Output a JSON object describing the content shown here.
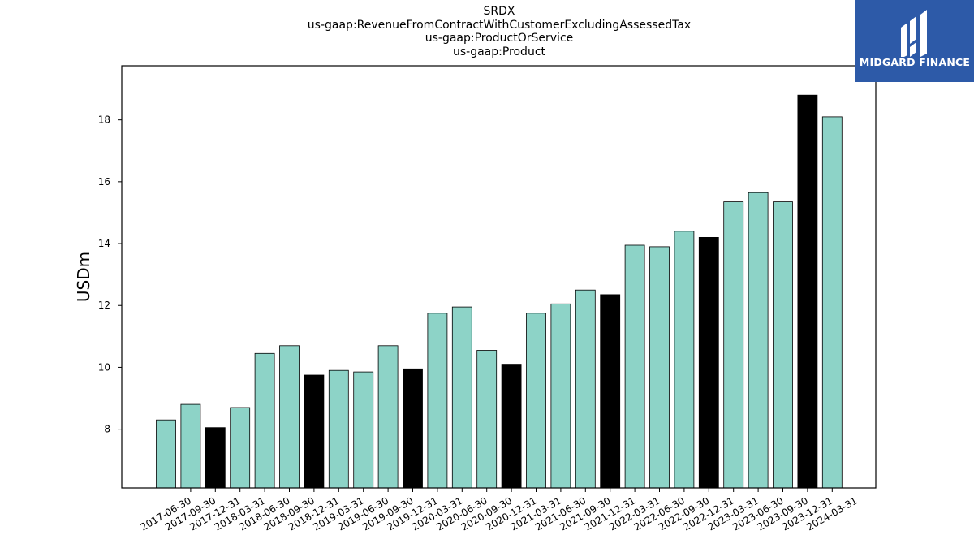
{
  "header": {
    "ticker": "SRDX",
    "concept": "us-gaap:RevenueFromContractWithCustomerExcludingAssessedTax",
    "axis": "us-gaap:ProductOrService",
    "member": "us-gaap:Product"
  },
  "logo": {
    "text": "MIDGARD FINANCE",
    "bg_color": "#2d5aa8",
    "icon": "midgard-logo-icon"
  },
  "colors": {
    "quarter_bar": "#8dd3c7",
    "year_end_bar": "#000000",
    "bar_edge": "#000000"
  },
  "chart_data": {
    "type": "bar",
    "title": "SRDX",
    "subtitles": [
      "us-gaap:RevenueFromContractWithCustomerExcludingAssessedTax",
      "us-gaap:ProductOrService",
      "us-gaap:Product"
    ],
    "xlabel": "",
    "ylabel": "USDm",
    "ylim": [
      6.1,
      19.75
    ],
    "yticks": [
      8,
      10,
      12,
      14,
      16,
      18
    ],
    "grid": false,
    "legend": "none",
    "categories": [
      "2017-06-30",
      "2017-09-30",
      "2017-12-31",
      "2018-03-31",
      "2018-06-30",
      "2018-09-30",
      "2018-12-31",
      "2019-03-31",
      "2019-06-30",
      "2019-09-30",
      "2019-12-31",
      "2020-03-31",
      "2020-06-30",
      "2020-09-30",
      "2020-12-31",
      "2021-03-31",
      "2021-06-30",
      "2021-09-30",
      "2021-12-31",
      "2022-03-31",
      "2022-06-30",
      "2022-09-30",
      "2022-12-31",
      "2023-03-31",
      "2023-06-30",
      "2023-09-30",
      "2023-12-31",
      "2024-03-31"
    ],
    "values": [
      8.3,
      8.8,
      8.05,
      8.7,
      10.45,
      10.7,
      9.75,
      9.9,
      9.85,
      10.7,
      9.95,
      11.75,
      11.95,
      10.55,
      10.1,
      11.75,
      12.05,
      12.5,
      12.35,
      13.95,
      13.9,
      14.4,
      14.2,
      15.35,
      15.65,
      15.35,
      18.8,
      18.1
    ],
    "highlight": [
      false,
      false,
      true,
      false,
      false,
      false,
      true,
      false,
      false,
      false,
      true,
      false,
      false,
      false,
      true,
      false,
      false,
      false,
      true,
      false,
      false,
      false,
      true,
      false,
      false,
      false,
      true,
      false
    ]
  }
}
